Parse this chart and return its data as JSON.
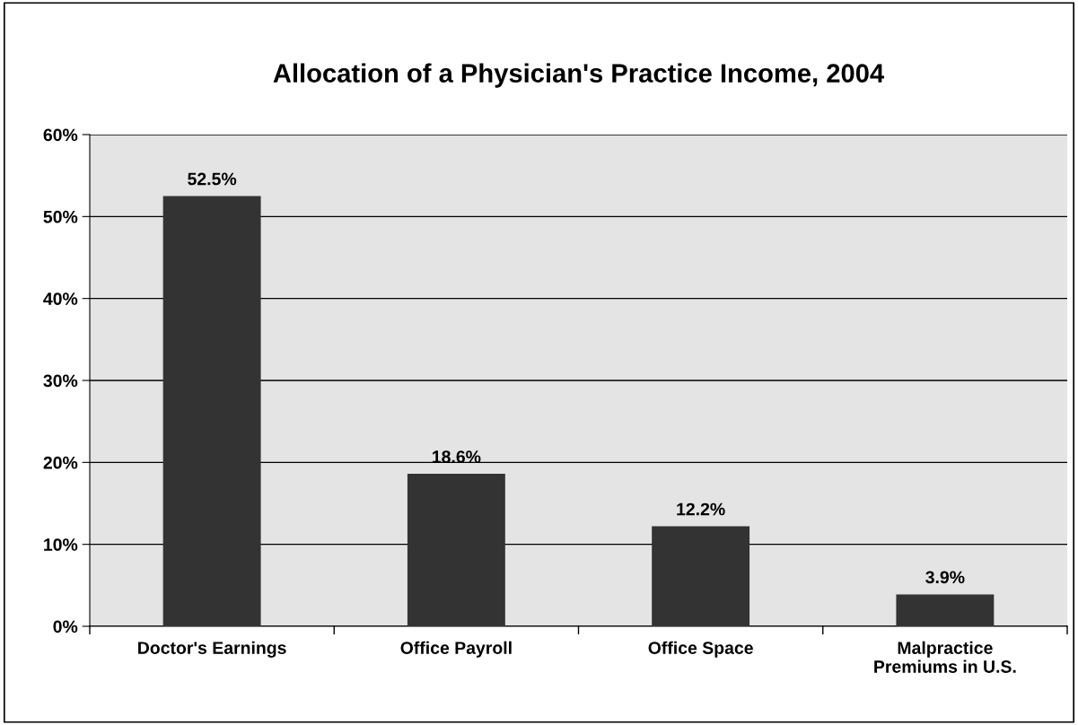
{
  "chart_data": {
    "type": "bar",
    "title": "Allocation of a Physician's Practice Income, 2004",
    "categories": [
      "Doctor's Earnings",
      "Office Payroll",
      "Office Space",
      "Malpractice\nPremiums in U.S."
    ],
    "values": [
      52.5,
      18.6,
      12.2,
      3.9
    ],
    "value_labels": [
      "52.5%",
      "18.6%",
      "12.2%",
      "3.9%"
    ],
    "color": "#333333",
    "ylim": [
      0,
      60
    ],
    "yticks": [
      {
        "value": 0,
        "label": "0%"
      },
      {
        "value": 10,
        "label": "10%"
      },
      {
        "value": 20,
        "label": "20%"
      },
      {
        "value": 30,
        "label": "30%"
      },
      {
        "value": 40,
        "label": "40%"
      },
      {
        "value": 50,
        "label": "50%"
      },
      {
        "value": 60,
        "label": "60%"
      }
    ],
    "grid": "y",
    "legend": false
  }
}
